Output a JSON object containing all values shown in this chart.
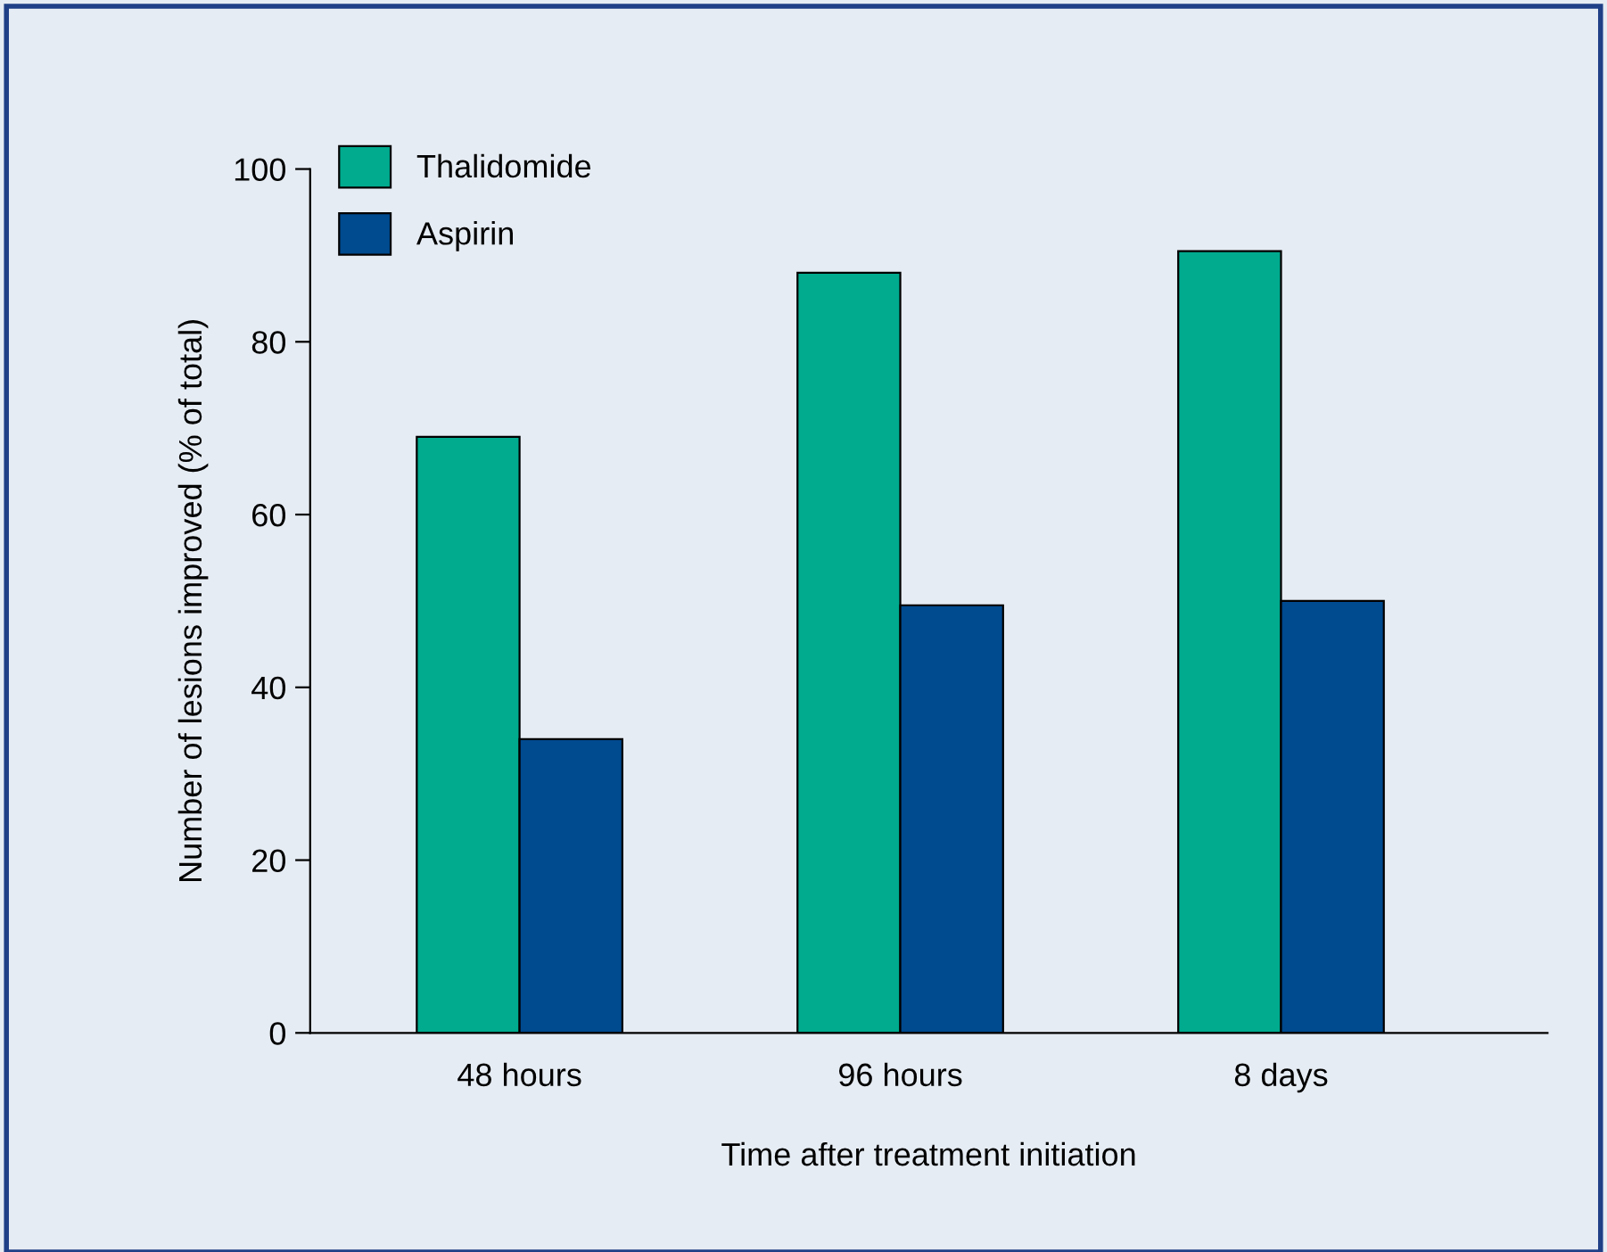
{
  "chart_data": {
    "type": "bar",
    "xlabel": "Time after treatment initiation",
    "ylabel": "Number of lesions improved (% of total)",
    "categories": [
      "48 hours",
      "96 hours",
      "8 days"
    ],
    "series": [
      {
        "name": "Thalidomide",
        "color": "#00ab8e",
        "values": [
          69,
          88,
          90.5
        ]
      },
      {
        "name": "Aspirin",
        "color": "#004a8f",
        "values": [
          34,
          49.5,
          50
        ]
      }
    ],
    "ylim": [
      0,
      100
    ],
    "yticks": [
      0,
      20,
      40,
      60,
      80,
      100
    ],
    "grid": false,
    "legend": "top left"
  }
}
